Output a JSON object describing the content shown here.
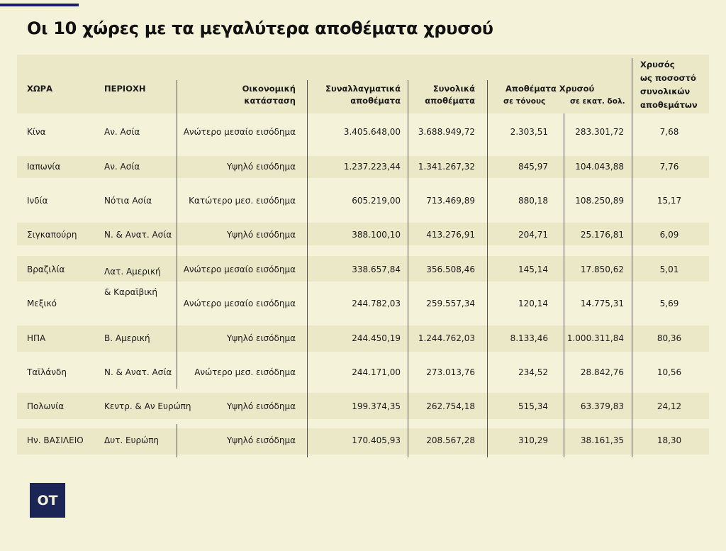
{
  "title": "Οι 10 χώρες με τα μεγαλύτερα αποθέματα χρυσού",
  "logo_text": "OT",
  "colors": {
    "background": "#f4f3d9",
    "stripe": "#ebe8c8",
    "brand": "#1b2556"
  },
  "chart_data": {
    "type": "table",
    "title": "Οι 10 χώρες με τα μεγαλύτερα αποθέματα χρυσού",
    "headers": {
      "country": "ΧΩΡΑ",
      "region": "ΠΕΡΙΟΧΗ",
      "economy": [
        "Οικονομική",
        "κατάσταση"
      ],
      "fx_reserves": [
        "Συναλλαγματικά",
        "αποθέματα"
      ],
      "total_reserves": [
        "Συνολικά",
        "αποθέματα"
      ],
      "gold_group": "Αποθέματα Χρυσού",
      "gold_tonnes": "σε τόνους",
      "gold_usd": "σε εκατ. δολ.",
      "gold_pct": [
        "Χρυσός",
        "ως ποσοστό",
        "συνολικών",
        "αποθεμάτων"
      ]
    },
    "rows": [
      {
        "country": "Κίνα",
        "region": "Αν. Ασία",
        "economy": "Ανώτερο μεσαίο εισόδημα",
        "fx": "3.405.648,00",
        "total": "3.688.949,72",
        "tonnes": "2.303,51",
        "usd": "283.301,72",
        "pct": "7,68"
      },
      {
        "country": "Ιαπωνία",
        "region": "Αν. Ασία",
        "economy": "Υψηλό εισόδημα",
        "fx": "1.237.223,44",
        "total": "1.341.267,32",
        "tonnes": "845,97",
        "usd": "104.043,88",
        "pct": "7,76"
      },
      {
        "country": "Ινδία",
        "region": "Νότια Ασία",
        "economy": "Κατώτερο μεσ. εισόδημα",
        "fx": "605.219,00",
        "total": "713.469,89",
        "tonnes": "880,18",
        "usd": "108.250,89",
        "pct": "15,17"
      },
      {
        "country": "Σιγκαπούρη",
        "region": "Ν. & Ανατ. Ασία",
        "economy": "Υψηλό εισόδημα",
        "fx": "388.100,10",
        "total": "413.276,91",
        "tonnes": "204,71",
        "usd": "25.176,81",
        "pct": "6,09"
      },
      {
        "country": "Βραζιλία",
        "region": "Λατ. Αμερική",
        "economy": "Ανώτερο μεσαίο εισόδημα",
        "fx": "338.657,84",
        "total": "356.508,46",
        "tonnes": "145,14",
        "usd": "17.850,62",
        "pct": "5,01"
      },
      {
        "country": "Μεξικό",
        "region": "& Καραϊβική",
        "economy": "Ανώτερο μεσαίο εισόδημα",
        "fx": "244.782,03",
        "total": "259.557,34",
        "tonnes": "120,14",
        "usd": "14.775,31",
        "pct": "5,69"
      },
      {
        "country": "ΗΠΑ",
        "region": "Β. Αμερική",
        "economy": "Υψηλό εισόδημα",
        "fx": "244.450,19",
        "total": "1.244.762,03",
        "tonnes": "8.133,46",
        "usd": "1.000.311,84",
        "pct": "80,36"
      },
      {
        "country": "Ταϊλάνδη",
        "region": "Ν. & Ανατ. Ασία",
        "economy": "Ανώτερο μεσ. εισόδημα",
        "fx": "244.171,00",
        "total": "273.013,76",
        "tonnes": "234,52",
        "usd": "28.842,76",
        "pct": "10,56"
      },
      {
        "country": "Πολωνία",
        "region": "Κεντρ. & Αν Ευρώπη",
        "economy": "Υψηλό εισόδημα",
        "fx": "199.374,35",
        "total": "262.754,18",
        "tonnes": "515,34",
        "usd": "63.379,83",
        "pct": "24,12"
      },
      {
        "country": "Ην. ΒΑΣΙΛΕΙΟ",
        "region": "Δυτ. Ευρώπη",
        "economy": "Υψηλό εισόδημα",
        "fx": "170.405,93",
        "total": "208.567,28",
        "tonnes": "310,29",
        "usd": "38.161,35",
        "pct": "18,30"
      }
    ]
  }
}
